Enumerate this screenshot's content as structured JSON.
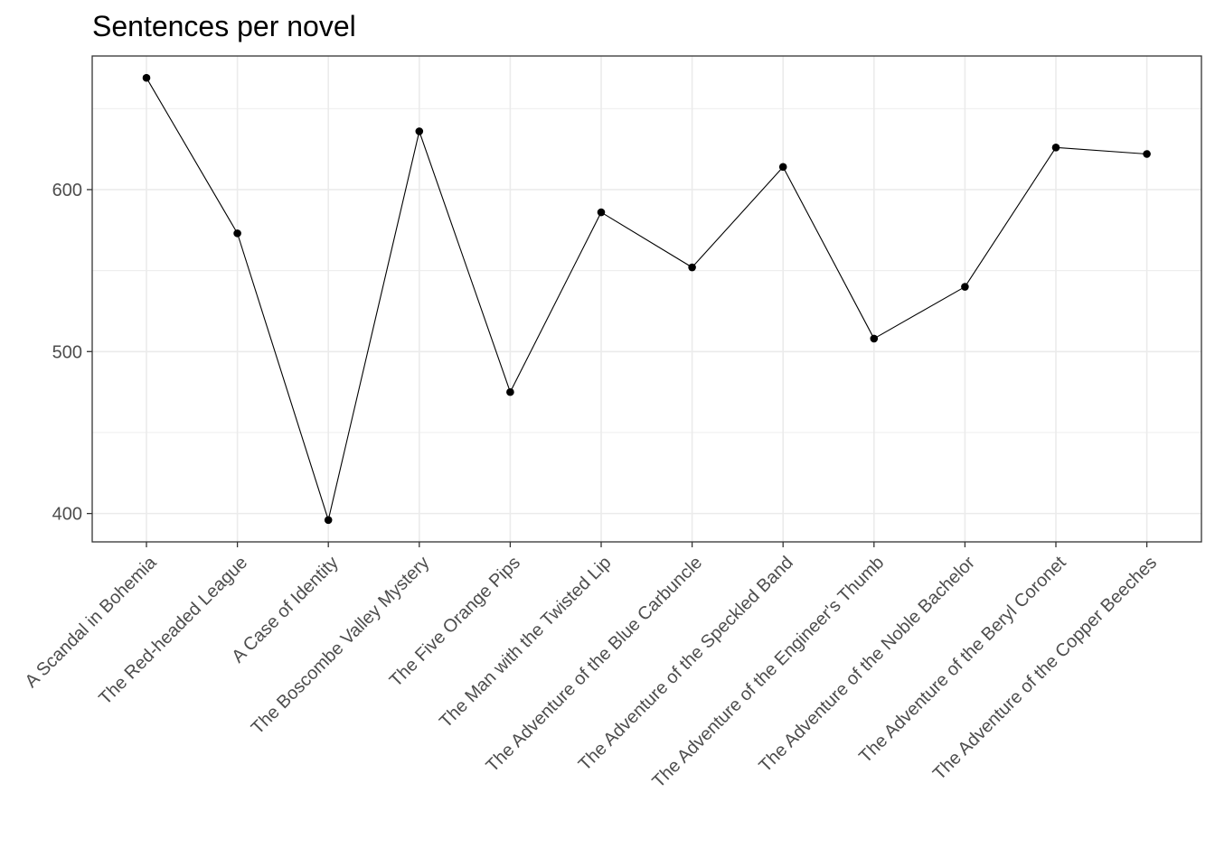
{
  "chart_data": {
    "type": "line",
    "title": "Sentences per novel",
    "xlabel": "",
    "ylabel": "",
    "categories": [
      "A Scandal in Bohemia",
      "The Red-headed League",
      "A Case of Identity",
      "The Boscombe Valley Mystery",
      "The Five Orange Pips",
      "The Man with the Twisted Lip",
      "The Adventure of the Blue Carbuncle",
      "The Adventure of the Speckled Band",
      "The Adventure of the Engineer's Thumb",
      "The Adventure of the Noble Bachelor",
      "The Adventure of the Beryl Coronet",
      "The Adventure of the Copper Beeches"
    ],
    "values": [
      669,
      573,
      396,
      636,
      475,
      586,
      552,
      614,
      508,
      540,
      626,
      622
    ],
    "y_ticks": [
      400,
      500,
      600
    ],
    "y_tick_labels": [
      "400",
      "500",
      "600"
    ],
    "ylim": [
      382.5,
      682.5
    ],
    "grid": true,
    "legend": "none",
    "colors": {
      "line": "#000000",
      "point": "#000000",
      "grid": "#ebebeb",
      "panel_border": "#333333",
      "tick_text": "#4d4d4d"
    }
  }
}
